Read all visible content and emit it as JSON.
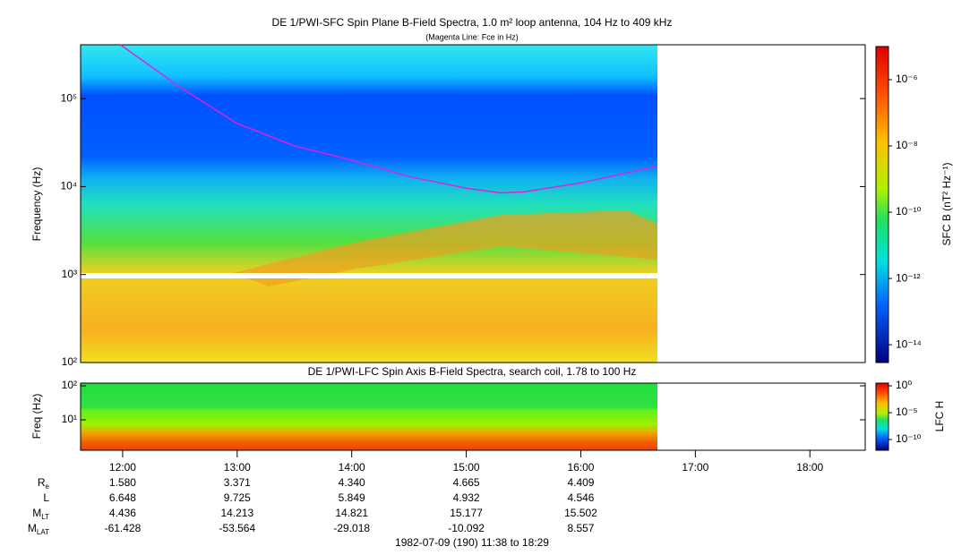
{
  "chart_data": [
    {
      "type": "spectrogram",
      "title": "DE 1/PWI-SFC  Spin Plane B-Field Spectra, 1.0 m² loop antenna, 104 Hz to 409 kHz",
      "subtitle": "(Magenta Line: Fce in Hz)",
      "ylabel": "Frequency (Hz)",
      "yscale": "log",
      "xlim": [
        11.633,
        18.483
      ],
      "ylim": [
        100,
        409000
      ],
      "yticks": [
        {
          "value": 100,
          "label": "10²"
        },
        {
          "value": 1000,
          "label": "10³"
        },
        {
          "value": 10000,
          "label": "10⁴"
        },
        {
          "value": 100000,
          "label": "10⁵"
        }
      ],
      "colorbar": {
        "label": "SFC B (nT² Hz⁻¹)",
        "scale": "log",
        "lim": [
          2.9e-15,
          1e-05
        ],
        "ticks": [
          {
            "value": 1e-06,
            "label": "10⁻⁶"
          },
          {
            "value": 1e-08,
            "label": "10⁻⁸"
          },
          {
            "value": 1e-10,
            "label": "10⁻¹⁰"
          },
          {
            "value": 1e-12,
            "label": "10⁻¹²"
          },
          {
            "value": 1e-14,
            "label": "10⁻¹⁴"
          }
        ]
      },
      "series": [
        {
          "color": "#e020e0",
          "x": [
            11.98,
            12.5,
            13.0,
            13.5,
            14.0,
            14.5,
            15.0,
            15.3,
            15.5,
            16.0,
            16.66
          ],
          "values": [
            409000,
            135000,
            52000,
            29000,
            20000,
            13000,
            9600,
            8500,
            8700,
            11000,
            17000
          ]
        }
      ]
    },
    {
      "type": "spectrogram",
      "title": "DE 1/PWI-LFC  Spin Axis B-Field Spectra, search coil, 1.78 to 100 Hz",
      "ylabel": "Freq (Hz)",
      "yscale": "log",
      "xlim": [
        11.633,
        18.483
      ],
      "ylim": [
        1.27,
        120
      ],
      "yticks": [
        {
          "value": 100,
          "label": "10²"
        },
        {
          "value": 10,
          "label": "10¹"
        }
      ],
      "xticks": [
        {
          "value": 12,
          "label": "12:00"
        },
        {
          "value": 13,
          "label": "13:00"
        },
        {
          "value": 14,
          "label": "14:00"
        },
        {
          "value": 15,
          "label": "15:00"
        },
        {
          "value": 16,
          "label": "16:00"
        },
        {
          "value": 17,
          "label": "17:00"
        },
        {
          "value": 18,
          "label": "18:00"
        }
      ],
      "colorbar": {
        "label": "LFC H",
        "scale": "log",
        "lim": [
          1e-12,
          3.16
        ],
        "ticks": [
          {
            "value": 1,
            "label": "10⁰"
          },
          {
            "value": 1e-05,
            "label": "10⁻⁵"
          },
          {
            "value": 1e-10,
            "label": "10⁻¹⁰"
          }
        ]
      },
      "ephemeris": [
        {
          "label": "R",
          "sub": "e",
          "values": [
            "1.580",
            "3.371",
            "4.340",
            "4.665",
            "4.409"
          ]
        },
        {
          "label": "L",
          "values": [
            "6.648",
            "9.725",
            "5.849",
            "4.932",
            "4.546"
          ]
        },
        {
          "label": "M",
          "sub": "LT",
          "values": [
            "4.436",
            "14.213",
            "14.821",
            "15.177",
            "15.502"
          ]
        },
        {
          "label": "M",
          "sub": "LAT",
          "values": [
            "-61.428",
            "-53.564",
            "-29.018",
            "-10.092",
            "8.557"
          ]
        }
      ],
      "footer": "1982-07-09 (190) 11:38 to 18:29"
    }
  ]
}
